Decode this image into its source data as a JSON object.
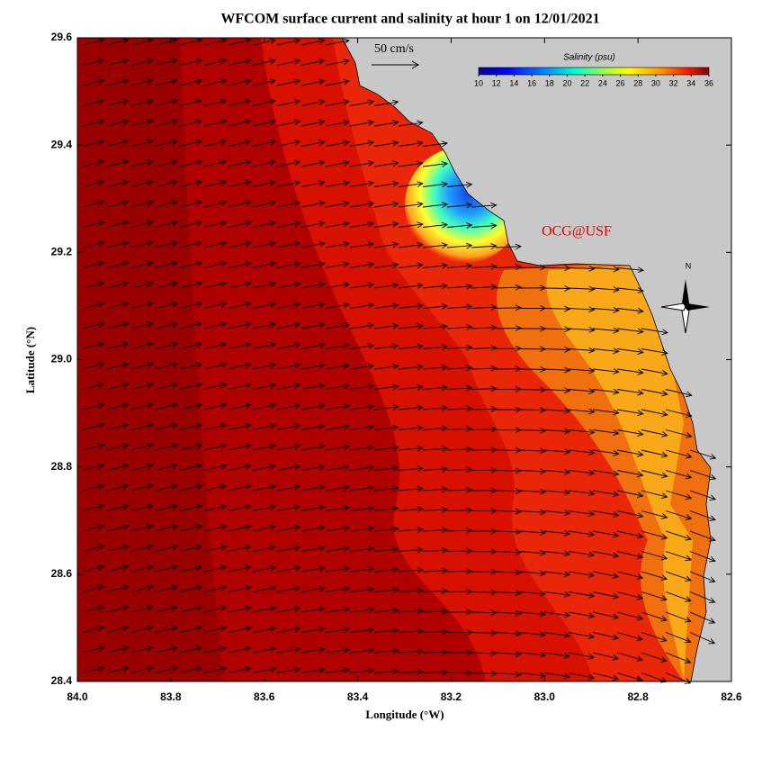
{
  "title": "WFCOM surface current and salinity at hour 1 on 12/01/2021",
  "map": {
    "xlabel": "Longitude (°W)",
    "ylabel": "Latitude (°N)",
    "xlim": [
      84,
      82.6
    ],
    "xticks": [
      {
        "value": 84,
        "label": "84.0"
      },
      83.8,
      83.6,
      83.4,
      83.2,
      {
        "value": 83,
        "label": "83.0"
      },
      82.8,
      82.6
    ],
    "ylim": [
      28.4,
      29.6
    ],
    "yticks": [
      28.4,
      28.6,
      28.8,
      {
        "value": 29,
        "label": "29.0"
      },
      29.2,
      29.4,
      29.6
    ]
  },
  "legend": {
    "vector_label": "50 cm/s",
    "colorbar_title": "Salinity (psu)",
    "colorbar_range": [
      10,
      36
    ],
    "colorbar_ticks": [
      10,
      12,
      14,
      16,
      18,
      20,
      22,
      24,
      26,
      28,
      30,
      32,
      34,
      36
    ]
  },
  "credit": "OCG@USF",
  "compass": "N"
}
